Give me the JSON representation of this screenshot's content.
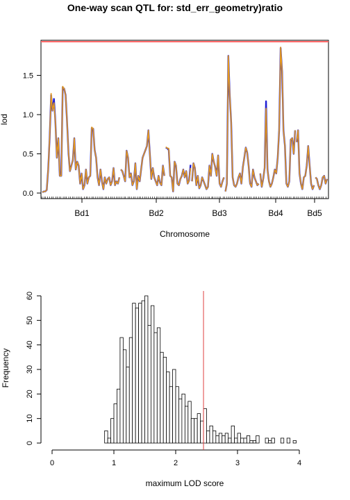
{
  "title": "One-way scan QTL for: std_err_geometry)ratio",
  "chart_data": [
    {
      "type": "line",
      "xlabel": "Chromosome",
      "ylabel": "lod",
      "ylim": [
        0,
        1.93
      ],
      "yticks": [
        "0.0",
        "0.5",
        "1.0",
        "1.5"
      ],
      "chromosomes": [
        "Bd1",
        "Bd2",
        "Bd3",
        "Bd4",
        "Bd5"
      ],
      "threshold": 1.93,
      "threshold_color": "#ff6b6b",
      "series": [
        {
          "color": "#1f1fd6",
          "values": [
            0.01,
            0.02,
            0.02,
            0.04,
            0.3,
            0.7,
            1.25,
            1.05,
            1.2,
            0.9,
            0.45,
            0.7,
            0.22,
            0.22,
            1.35,
            1.33,
            1.25,
            0.9,
            0.5,
            0.28,
            0.35,
            0.42,
            0.7,
            0.3,
            0.4,
            0.35,
            0.12,
            0.25,
            0.05,
            0.1,
            0.3,
            0.12,
            0.2,
            0.22,
            0.83,
            0.82,
            0.55,
            0.45,
            0.2,
            0.1,
            0.3,
            0.15,
            0.05,
            0.2,
            0.12,
            0.18,
            0.2,
            0.1,
            0.15,
            0.32,
            0.1,
            0.15,
            0.12,
            0.2,
            0.3,
            0.28,
            0.22,
            0.15,
            0.54,
            0.45,
            0.2,
            0.25,
            0.1,
            0.15,
            0.38,
            0.05,
            0.22,
            0.15,
            0.3,
            0.45,
            0.5,
            0.55,
            0.6,
            0.8,
            0.5,
            0.18,
            0.32,
            0.2,
            0.15,
            0.1,
            0.22,
            0.13,
            0.1,
            0.35,
            0.22,
            0.58,
            0.57,
            0.55,
            0.22,
            0.2,
            0.02,
            0.4,
            0.35,
            0.12,
            0.1,
            0.18,
            0.22,
            0.3,
            0.2,
            0.28,
            0.12,
            0.16,
            0.36,
            0.15,
            0.38,
            0.32,
            0.1,
            0.22,
            0.06,
            0.1,
            0.2,
            0.15,
            0.1,
            0.05,
            0.08,
            0.35,
            0.22,
            0.5,
            0.4,
            0.33,
            0.22,
            0.48,
            0.12,
            0.08,
            0.15,
            0.2,
            0.02,
            0.12,
            1.75,
            1.25,
            0.9,
            0.2,
            0.1,
            0.08,
            0.12,
            0.2,
            0.25,
            0.12,
            0.33,
            0.45,
            0.58,
            0.52,
            0.35,
            0.12,
            0.08,
            0.3,
            0.2,
            0.15,
            0.1,
            0.12,
            0.25,
            0.08,
            0.18,
            0.32,
            1.17,
            0.3,
            0.15,
            0.08,
            0.12,
            0.2,
            0.3,
            0.25,
            0.45,
            0.8,
            1.85,
            1.55,
            0.8,
            0.6,
            0.12,
            0.08,
            0.15,
            0.68,
            0.7,
            0.5,
            0.8,
            0.65,
            0.8,
            0.25,
            0.12,
            0.05,
            0.2,
            0.22,
            0.35,
            0.6,
            0.35,
            0.12,
            0.05,
            0.1,
            0.2,
            0.18,
            0.1,
            0.05,
            0.1,
            0.2,
            0.22,
            0.12,
            0.18
          ],
          "gaps": [
            54,
            85,
            103,
            126,
            150,
            175,
            188
          ]
        },
        {
          "color": "#e69a1c",
          "values": [
            0.01,
            0.02,
            0.02,
            0.04,
            0.3,
            0.7,
            1.27,
            1.05,
            1.15,
            0.9,
            0.45,
            0.7,
            0.22,
            0.22,
            1.36,
            1.33,
            1.25,
            0.9,
            0.5,
            0.28,
            0.35,
            0.42,
            0.7,
            0.3,
            0.4,
            0.35,
            0.12,
            0.25,
            0.05,
            0.1,
            0.3,
            0.12,
            0.2,
            0.22,
            0.84,
            0.82,
            0.55,
            0.45,
            0.2,
            0.1,
            0.3,
            0.15,
            0.05,
            0.2,
            0.12,
            0.18,
            0.2,
            0.1,
            0.15,
            0.32,
            0.1,
            0.15,
            0.12,
            0.2,
            0.3,
            0.28,
            0.22,
            0.15,
            0.54,
            0.45,
            0.2,
            0.25,
            0.1,
            0.15,
            0.38,
            0.05,
            0.22,
            0.15,
            0.3,
            0.45,
            0.5,
            0.55,
            0.6,
            0.8,
            0.5,
            0.18,
            0.32,
            0.2,
            0.15,
            0.1,
            0.22,
            0.13,
            0.1,
            0.35,
            0.22,
            0.59,
            0.57,
            0.57,
            0.22,
            0.2,
            0.02,
            0.4,
            0.35,
            0.12,
            0.1,
            0.18,
            0.22,
            0.3,
            0.2,
            0.28,
            0.12,
            0.16,
            0.32,
            0.15,
            0.38,
            0.32,
            0.1,
            0.22,
            0.06,
            0.1,
            0.2,
            0.15,
            0.1,
            0.05,
            0.08,
            0.35,
            0.22,
            0.5,
            0.4,
            0.33,
            0.22,
            0.48,
            0.12,
            0.08,
            0.15,
            0.2,
            0.02,
            0.12,
            1.75,
            1.25,
            0.9,
            0.2,
            0.1,
            0.08,
            0.12,
            0.2,
            0.25,
            0.12,
            0.33,
            0.45,
            0.58,
            0.52,
            0.35,
            0.12,
            0.08,
            0.3,
            0.2,
            0.15,
            0.1,
            0.12,
            0.25,
            0.08,
            0.18,
            0.32,
            1.08,
            0.3,
            0.15,
            0.08,
            0.12,
            0.2,
            0.3,
            0.25,
            0.45,
            0.8,
            1.86,
            1.55,
            0.8,
            0.6,
            0.12,
            0.08,
            0.15,
            0.68,
            0.7,
            0.5,
            0.8,
            0.65,
            0.8,
            0.25,
            0.12,
            0.05,
            0.2,
            0.22,
            0.35,
            0.6,
            0.35,
            0.12,
            0.05,
            0.1,
            0.2,
            0.18,
            0.1,
            0.05,
            0.1,
            0.2,
            0.22,
            0.12,
            0.18
          ],
          "gaps": [
            54,
            85,
            103,
            126,
            150,
            175,
            188
          ]
        }
      ]
    },
    {
      "type": "bar",
      "xlabel": "maximum LOD score",
      "ylabel": "Frequency",
      "xlim": [
        0,
        4.3
      ],
      "ylim": [
        0,
        60
      ],
      "xticks": [
        "0",
        "1",
        "2",
        "3",
        "4"
      ],
      "yticks": [
        "0",
        "10",
        "20",
        "30",
        "40",
        "50",
        "60"
      ],
      "bin_start": 0.85,
      "bin_width": 0.05,
      "values": [
        5,
        2,
        10,
        16,
        22,
        43,
        38,
        31,
        43,
        57,
        55,
        57,
        58,
        60,
        48,
        56,
        45,
        47,
        37,
        35,
        29,
        23,
        30,
        23,
        18,
        20,
        15,
        17,
        10,
        10,
        12,
        9,
        14,
        5,
        7,
        5,
        3,
        4,
        3,
        4,
        2,
        7,
        2,
        4,
        2,
        2,
        3,
        1,
        1,
        3,
        0,
        0,
        2,
        1,
        2,
        0,
        0,
        2,
        0,
        2,
        0,
        1,
        0,
        0,
        0,
        0,
        0,
        0,
        0,
        0,
        0,
        0,
        0,
        0,
        0,
        0,
        0,
        0,
        0,
        0,
        0,
        0,
        1,
        0,
        0,
        0,
        0,
        1,
        0,
        0,
        0,
        0,
        0,
        0,
        0,
        0,
        1
      ],
      "threshold": 2.45,
      "threshold_color": "#e04040"
    }
  ]
}
